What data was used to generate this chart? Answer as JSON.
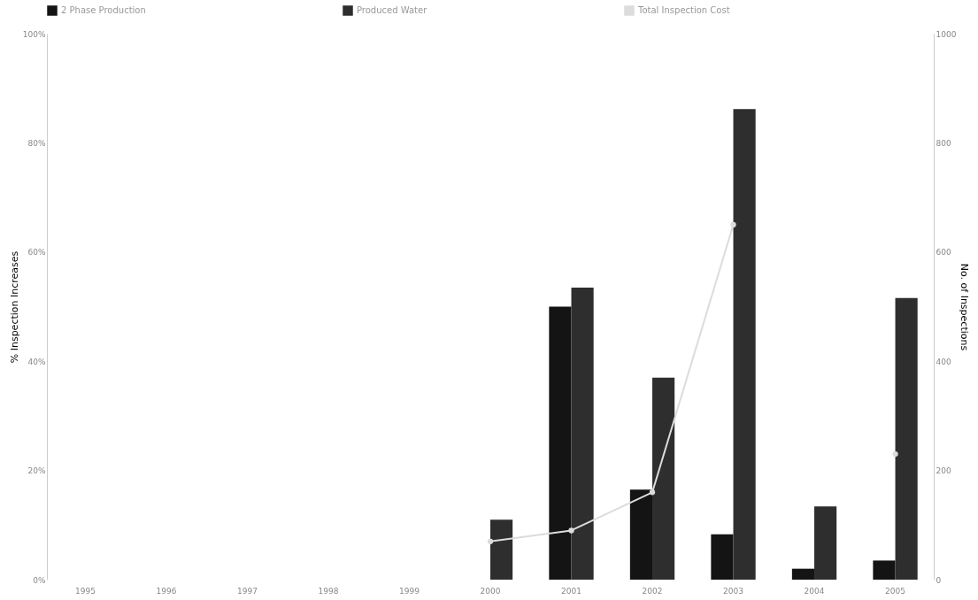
{
  "chart_data": {
    "type": "bar",
    "categories": [
      "1995",
      "1996",
      "1997",
      "1998",
      "1999",
      "2000",
      "2001",
      "2002",
      "2003",
      "2004",
      "2005"
    ],
    "series": [
      {
        "name": "2 Phase Production",
        "color": "#141414",
        "axis": "y2",
        "values": [
          null,
          null,
          null,
          null,
          null,
          null,
          500,
          165,
          83,
          20,
          35
        ]
      },
      {
        "name": "Produced Water",
        "color": "#2e2e2e",
        "axis": "y2",
        "values": [
          null,
          null,
          null,
          null,
          null,
          110,
          535,
          370,
          862,
          134,
          516
        ]
      },
      {
        "name": "Total Inspection Cost",
        "type": "line",
        "axis": "y",
        "color": "#dcdcdc",
        "values": [
          null,
          null,
          null,
          null,
          null,
          7,
          9,
          16,
          65,
          null,
          23
        ]
      }
    ],
    "ylabel": "% Inspection Increases",
    "y2label": "No. of Inspections",
    "ylim": [
      0,
      100
    ],
    "yticks": [
      {
        "value": 0,
        "label": "0%"
      },
      {
        "value": 20,
        "label": "20%"
      },
      {
        "value": 40,
        "label": "40%"
      },
      {
        "value": 60,
        "label": "60%"
      },
      {
        "value": 80,
        "label": "80%"
      },
      {
        "value": 100,
        "label": "100%"
      }
    ],
    "y2lim": [
      0,
      1000
    ],
    "y2ticks": [
      0,
      200,
      400,
      600,
      800,
      1000
    ],
    "legend": "top",
    "grid": false,
    "marker": "circle"
  }
}
